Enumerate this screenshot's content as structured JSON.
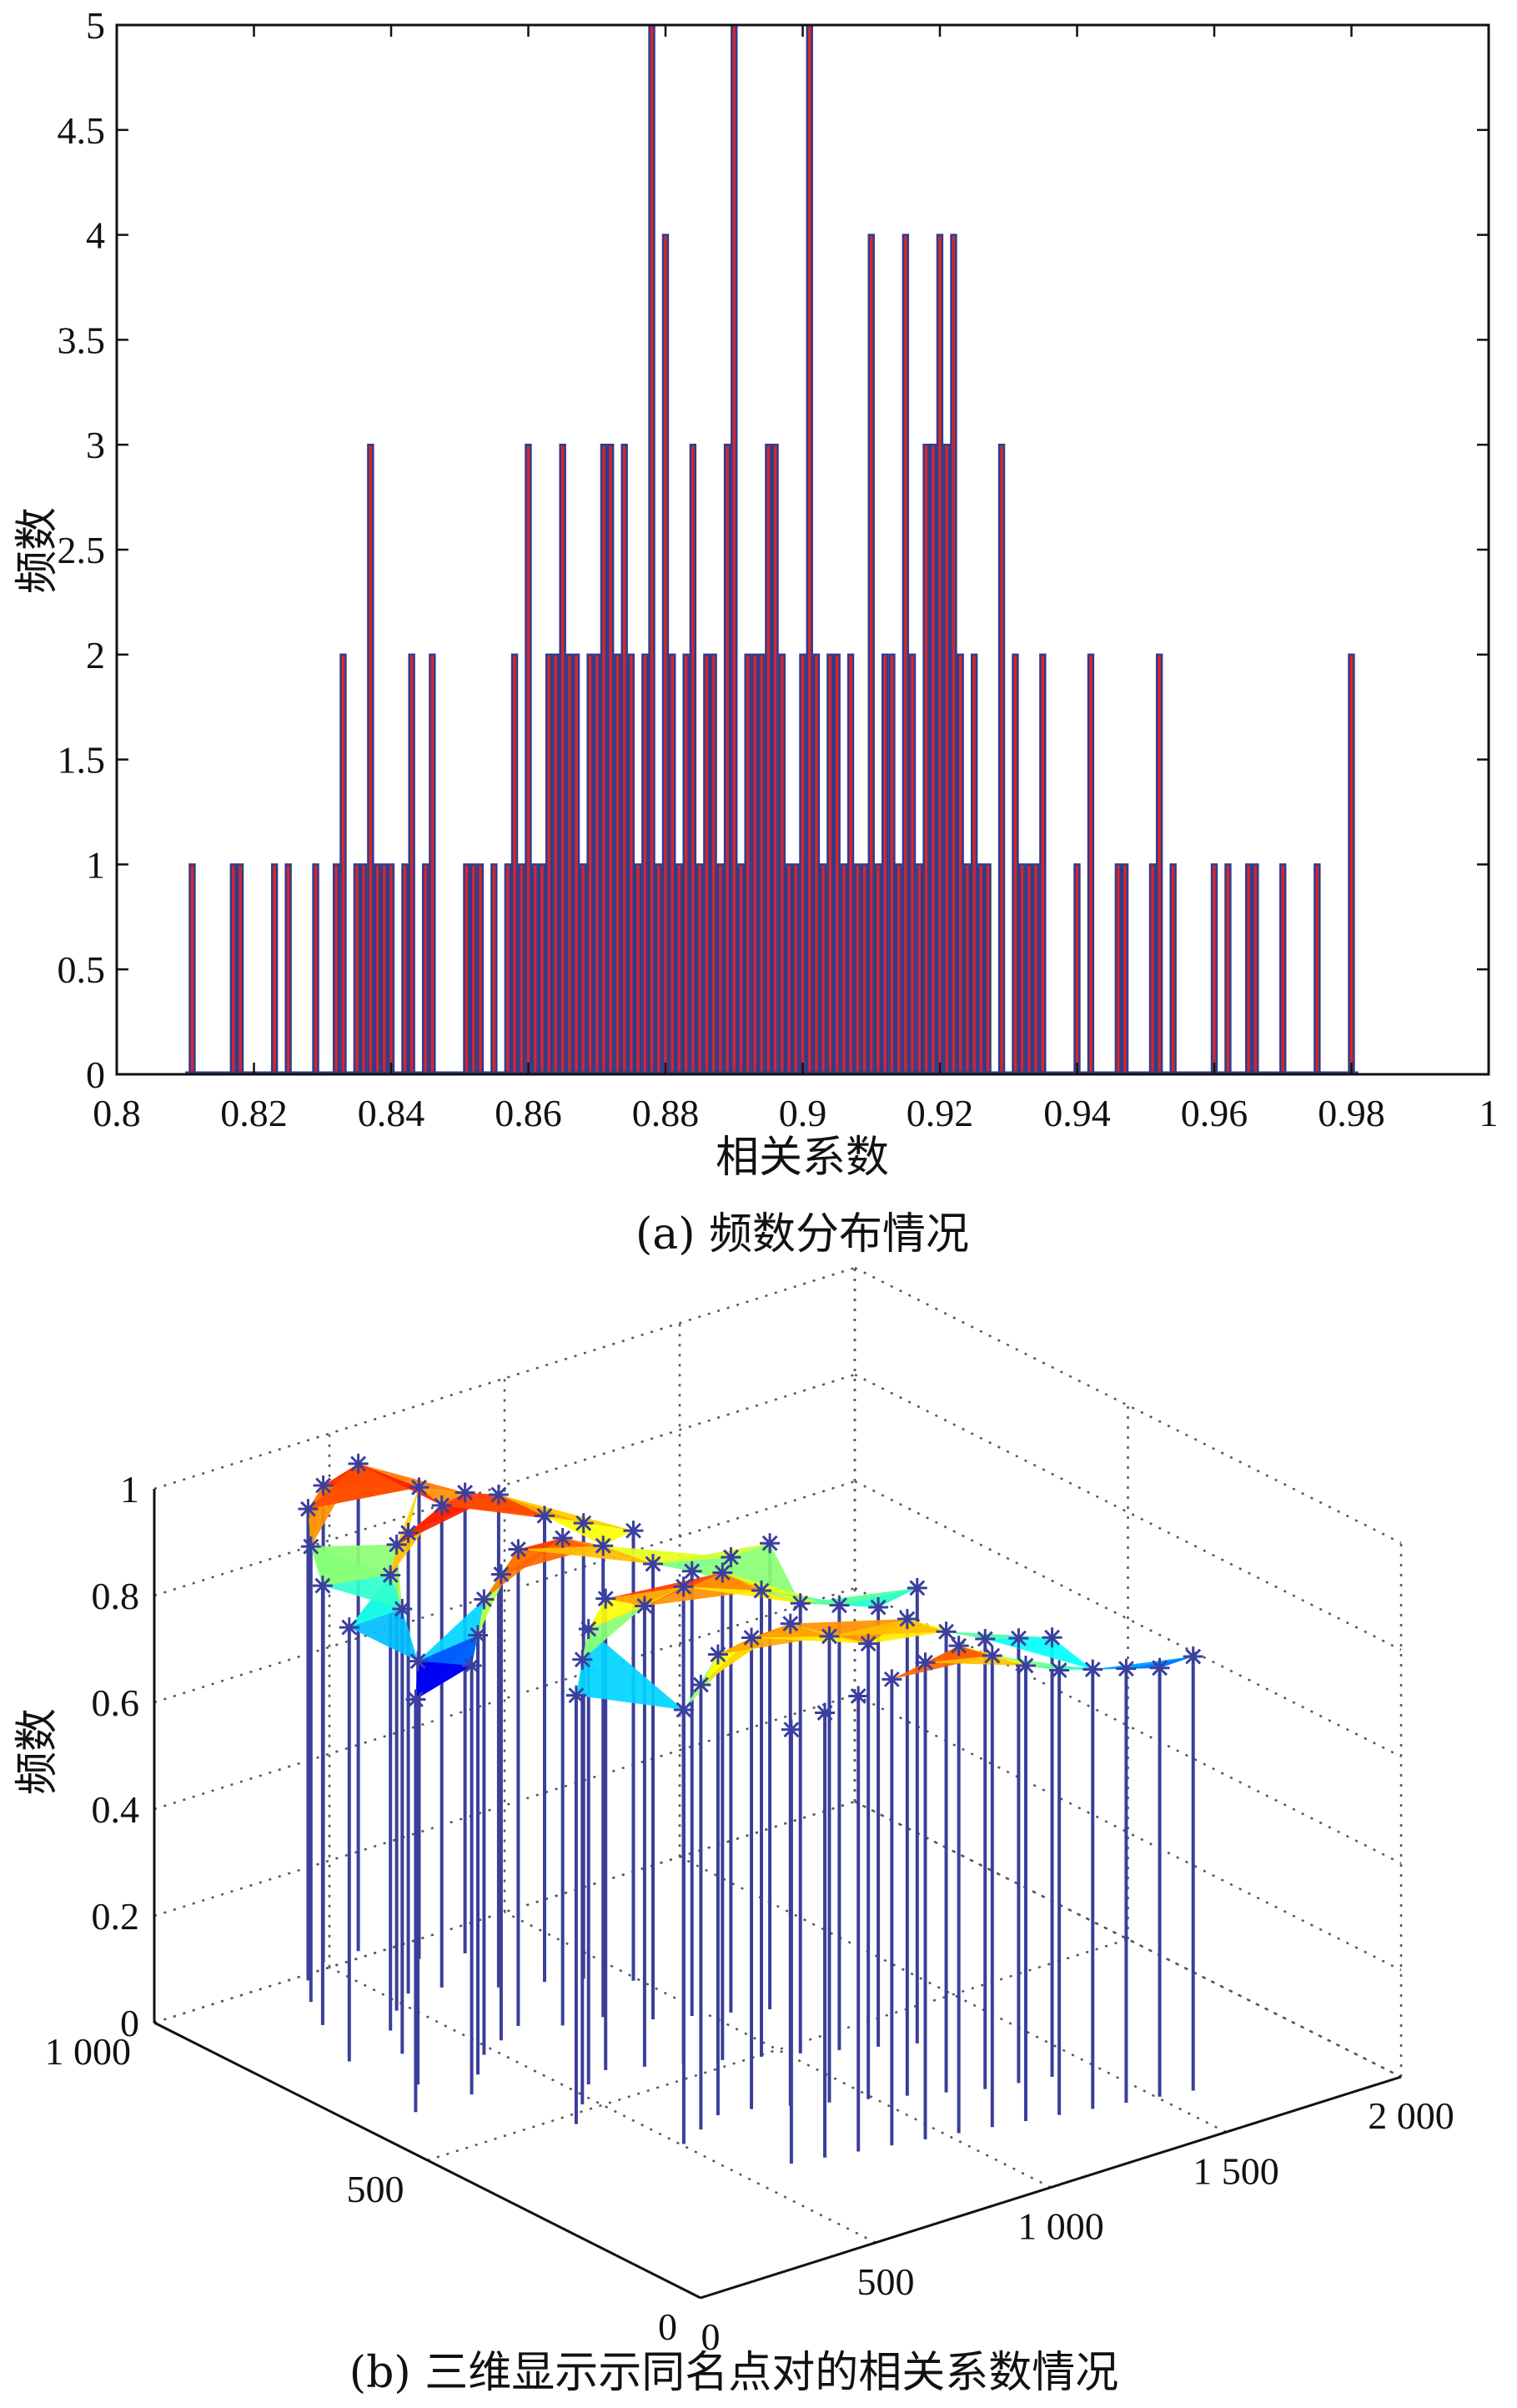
{
  "chart_data": [
    {
      "type": "bar",
      "caption": "(a) 频数分布情况",
      "xlabel": "相关系数",
      "ylabel": "频数",
      "xlim": [
        0.8,
        1.0
      ],
      "ylim": [
        0,
        5
      ],
      "xticks": [
        "0.8",
        "0.82",
        "0.84",
        "0.86",
        "0.88",
        "0.9",
        "0.92",
        "0.94",
        "0.96",
        "0.98",
        "1"
      ],
      "yticks": [
        "0",
        "0.5",
        "1",
        "1.5",
        "2",
        "2.5",
        "3",
        "3.5",
        "4",
        "4.5",
        "5"
      ],
      "grid": false,
      "bar_color": "#d9252b",
      "edge_color": "#2c3e8c",
      "bin_width": 0.001,
      "x": [
        0.811,
        0.817,
        0.818,
        0.823,
        0.825,
        0.829,
        0.832,
        0.833,
        0.835,
        0.836,
        0.837,
        0.838,
        0.839,
        0.84,
        0.842,
        0.843,
        0.845,
        0.846,
        0.851,
        0.852,
        0.853,
        0.855,
        0.857,
        0.858,
        0.859,
        0.86,
        0.861,
        0.862,
        0.863,
        0.864,
        0.865,
        0.866,
        0.867,
        0.868,
        0.869,
        0.87,
        0.871,
        0.872,
        0.873,
        0.874,
        0.875,
        0.876,
        0.877,
        0.878,
        0.879,
        0.88,
        0.881,
        0.882,
        0.883,
        0.884,
        0.885,
        0.886,
        0.887,
        0.888,
        0.889,
        0.89,
        0.891,
        0.892,
        0.893,
        0.894,
        0.895,
        0.896,
        0.897,
        0.898,
        0.899,
        0.9,
        0.901,
        0.902,
        0.903,
        0.904,
        0.905,
        0.906,
        0.907,
        0.908,
        0.909,
        0.91,
        0.911,
        0.912,
        0.913,
        0.914,
        0.915,
        0.916,
        0.917,
        0.918,
        0.919,
        0.92,
        0.921,
        0.922,
        0.923,
        0.924,
        0.925,
        0.926,
        0.927,
        0.929,
        0.931,
        0.932,
        0.933,
        0.934,
        0.935,
        0.94,
        0.942,
        0.946,
        0.947,
        0.951,
        0.952,
        0.954,
        0.96,
        0.962,
        0.965,
        0.966,
        0.97,
        0.975,
        0.98
      ],
      "values": [
        1,
        1,
        1,
        1,
        1,
        1,
        1,
        2,
        1,
        1,
        3,
        1,
        1,
        1,
        1,
        2,
        1,
        2,
        1,
        1,
        1,
        1,
        1,
        2,
        1,
        3,
        1,
        1,
        2,
        2,
        3,
        2,
        2,
        1,
        2,
        2,
        3,
        3,
        2,
        3,
        2,
        1,
        2,
        5,
        1,
        4,
        2,
        1,
        2,
        3,
        1,
        2,
        2,
        1,
        3,
        5,
        1,
        2,
        2,
        2,
        3,
        3,
        2,
        1,
        1,
        2,
        5,
        2,
        1,
        2,
        2,
        1,
        2,
        1,
        1,
        4,
        1,
        2,
        2,
        1,
        4,
        2,
        1,
        3,
        3,
        4,
        3,
        4,
        2,
        1,
        2,
        1,
        1,
        3,
        2,
        1,
        1,
        1,
        2,
        1,
        2,
        1,
        1,
        1,
        2,
        1,
        1,
        1,
        1,
        1,
        1,
        1,
        2
      ]
    },
    {
      "type": "3d-surface",
      "caption": "(b) 三维显示示同名点对的相关系数情况",
      "zlabel": "频数",
      "zticks": [
        "0",
        "0.2",
        "0.4",
        "0.6",
        "0.8",
        "1"
      ],
      "xticks": [
        "0",
        "500",
        "1 000",
        "1 500",
        "2 000"
      ],
      "yticks": [
        "0",
        "500",
        "1 000"
      ],
      "xlim": [
        0,
        2000
      ],
      "ylim": [
        0,
        1000
      ],
      "zlim": [
        0,
        1
      ],
      "colormap": "jet",
      "stem_color": "#3a3f9a",
      "grid": true,
      "points": [
        {
          "x": 60,
          "y": 560,
          "z": 0.82
        },
        {
          "x": 120,
          "y": 720,
          "z": 0.86
        },
        {
          "x": 200,
          "y": 820,
          "z": 0.87
        },
        {
          "x": 260,
          "y": 880,
          "z": 0.9
        },
        {
          "x": 330,
          "y": 930,
          "z": 0.93
        },
        {
          "x": 420,
          "y": 960,
          "z": 0.94
        },
        {
          "x": 520,
          "y": 960,
          "z": 0.96
        },
        {
          "x": 600,
          "y": 900,
          "z": 0.93
        },
        {
          "x": 700,
          "y": 880,
          "z": 0.91
        },
        {
          "x": 160,
          "y": 620,
          "z": 0.84
        },
        {
          "x": 240,
          "y": 700,
          "z": 0.88
        },
        {
          "x": 300,
          "y": 760,
          "z": 0.9
        },
        {
          "x": 380,
          "y": 800,
          "z": 0.92
        },
        {
          "x": 460,
          "y": 830,
          "z": 0.91
        },
        {
          "x": 540,
          "y": 820,
          "z": 0.95
        },
        {
          "x": 640,
          "y": 780,
          "z": 0.97
        },
        {
          "x": 740,
          "y": 760,
          "z": 0.92
        },
        {
          "x": 820,
          "y": 740,
          "z": 0.9
        },
        {
          "x": 900,
          "y": 700,
          "z": 0.89
        },
        {
          "x": 220,
          "y": 560,
          "z": 0.85
        },
        {
          "x": 300,
          "y": 600,
          "z": 0.87
        },
        {
          "x": 380,
          "y": 640,
          "z": 0.9
        },
        {
          "x": 460,
          "y": 660,
          "z": 0.92
        },
        {
          "x": 540,
          "y": 680,
          "z": 0.94
        },
        {
          "x": 620,
          "y": 650,
          "z": 0.96
        },
        {
          "x": 720,
          "y": 640,
          "z": 0.93
        },
        {
          "x": 800,
          "y": 600,
          "z": 0.9
        },
        {
          "x": 880,
          "y": 580,
          "z": 0.88
        },
        {
          "x": 960,
          "y": 560,
          "z": 0.9
        },
        {
          "x": 1040,
          "y": 540,
          "z": 0.92
        },
        {
          "x": 300,
          "y": 420,
          "z": 0.85
        },
        {
          "x": 380,
          "y": 460,
          "z": 0.88
        },
        {
          "x": 460,
          "y": 500,
          "z": 0.9
        },
        {
          "x": 540,
          "y": 520,
          "z": 0.93
        },
        {
          "x": 620,
          "y": 500,
          "z": 0.91
        },
        {
          "x": 700,
          "y": 480,
          "z": 0.94
        },
        {
          "x": 780,
          "y": 460,
          "z": 0.96
        },
        {
          "x": 860,
          "y": 440,
          "z": 0.92
        },
        {
          "x": 940,
          "y": 420,
          "z": 0.89
        },
        {
          "x": 1020,
          "y": 400,
          "z": 0.88
        },
        {
          "x": 1100,
          "y": 380,
          "z": 0.87
        },
        {
          "x": 1180,
          "y": 360,
          "z": 0.9
        },
        {
          "x": 420,
          "y": 300,
          "z": 0.86
        },
        {
          "x": 500,
          "y": 320,
          "z": 0.88
        },
        {
          "x": 580,
          "y": 340,
          "z": 0.91
        },
        {
          "x": 660,
          "y": 330,
          "z": 0.93
        },
        {
          "x": 740,
          "y": 310,
          "z": 0.95
        },
        {
          "x": 820,
          "y": 290,
          "z": 0.92
        },
        {
          "x": 900,
          "y": 270,
          "z": 0.9
        },
        {
          "x": 980,
          "y": 250,
          "z": 0.94
        },
        {
          "x": 1060,
          "y": 230,
          "z": 0.91
        },
        {
          "x": 1140,
          "y": 210,
          "z": 0.89
        },
        {
          "x": 1220,
          "y": 200,
          "z": 0.88
        },
        {
          "x": 1300,
          "y": 190,
          "z": 0.87
        },
        {
          "x": 540,
          "y": 180,
          "z": 0.86
        },
        {
          "x": 620,
          "y": 170,
          "z": 0.88
        },
        {
          "x": 700,
          "y": 160,
          "z": 0.9
        },
        {
          "x": 780,
          "y": 150,
          "z": 0.92
        },
        {
          "x": 860,
          "y": 140,
          "z": 0.94
        },
        {
          "x": 940,
          "y": 130,
          "z": 0.96
        },
        {
          "x": 1020,
          "y": 120,
          "z": 0.93
        },
        {
          "x": 1100,
          "y": 110,
          "z": 0.9
        },
        {
          "x": 1180,
          "y": 100,
          "z": 0.88
        },
        {
          "x": 1260,
          "y": 90,
          "z": 0.87
        },
        {
          "x": 1340,
          "y": 80,
          "z": 0.86
        },
        {
          "x": 1420,
          "y": 70,
          "z": 0.85
        },
        {
          "x": 1500,
          "y": 60,
          "z": 0.86
        }
      ]
    }
  ]
}
